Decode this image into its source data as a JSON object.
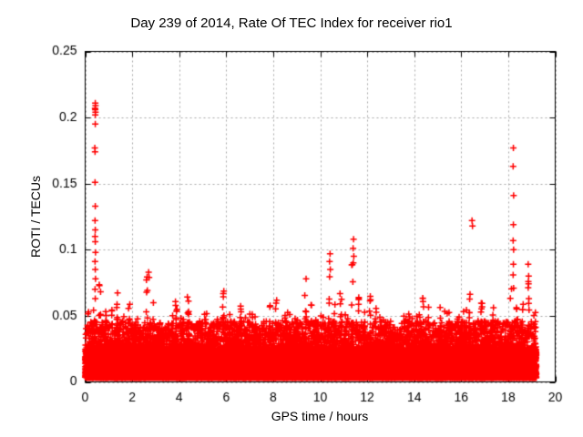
{
  "chart_data": {
    "type": "scatter",
    "title": "Day 239 of 2014, Rate Of TEC Index for receiver rio1",
    "xlabel": "GPS time / hours",
    "ylabel": "ROTI / TECUs",
    "xlim": [
      0,
      20
    ],
    "ylim": [
      0,
      0.25
    ],
    "xticks": [
      0,
      2,
      4,
      6,
      8,
      10,
      12,
      14,
      16,
      18,
      20
    ],
    "yticks": [
      0,
      0.05,
      0.1,
      0.15,
      0.2,
      0.25
    ],
    "grid": true,
    "legend": "none",
    "marker": "plus",
    "color": "#ff0000",
    "grid_color": "#a6a6a6",
    "frame_color": "#000000",
    "data_extent_hours": [
      0,
      19.2
    ],
    "baseline_band": {
      "min": 0.003,
      "dense_top": 0.026,
      "speckle_top": 0.046
    },
    "envelope_bin_hours": 0.25,
    "envelope_max": [
      0.067,
      0.06,
      0.075,
      0.068,
      0.06,
      0.073,
      0.05,
      0.063,
      0.048,
      0.052,
      0.083,
      0.06,
      0.045,
      0.042,
      0.055,
      0.062,
      0.05,
      0.068,
      0.045,
      0.05,
      0.055,
      0.048,
      0.06,
      0.072,
      0.052,
      0.048,
      0.06,
      0.05,
      0.055,
      0.042,
      0.048,
      0.058,
      0.062,
      0.048,
      0.055,
      0.05,
      0.055,
      0.078,
      0.06,
      0.048,
      0.05,
      0.085,
      0.06,
      0.069,
      0.055,
      0.095,
      0.07,
      0.058,
      0.065,
      0.06,
      0.05,
      0.048,
      0.042,
      0.045,
      0.05,
      0.052,
      0.055,
      0.067,
      0.06,
      0.048,
      0.062,
      0.055,
      0.048,
      0.052,
      0.055,
      0.07,
      0.055,
      0.06,
      0.052,
      0.058,
      0.048,
      0.055,
      0.08,
      0.065,
      0.06,
      0.085,
      0.068
    ],
    "outliers": [
      [
        0.43,
        0.211
      ],
      [
        0.44,
        0.209
      ],
      [
        0.42,
        0.207
      ],
      [
        0.43,
        0.206
      ],
      [
        0.44,
        0.204
      ],
      [
        0.43,
        0.202
      ],
      [
        0.43,
        0.195
      ],
      [
        0.41,
        0.177
      ],
      [
        0.42,
        0.174
      ],
      [
        0.42,
        0.151
      ],
      [
        0.43,
        0.133
      ],
      [
        0.42,
        0.122
      ],
      [
        0.43,
        0.115
      ],
      [
        0.42,
        0.11
      ],
      [
        0.43,
        0.106
      ],
      [
        0.44,
        0.098
      ],
      [
        0.42,
        0.091
      ],
      [
        0.43,
        0.085
      ],
      [
        0.44,
        0.078
      ],
      [
        0.42,
        0.07
      ],
      [
        0.43,
        0.063
      ],
      [
        2.7,
        0.083
      ],
      [
        2.72,
        0.079
      ],
      [
        9.4,
        0.078
      ],
      [
        10.42,
        0.097
      ],
      [
        10.4,
        0.091
      ],
      [
        10.43,
        0.085
      ],
      [
        11.42,
        0.108
      ],
      [
        11.4,
        0.101
      ],
      [
        11.43,
        0.095
      ],
      [
        11.41,
        0.09
      ],
      [
        16.46,
        0.122
      ],
      [
        16.48,
        0.118
      ],
      [
        18.22,
        0.177
      ],
      [
        18.21,
        0.163
      ],
      [
        18.23,
        0.141
      ],
      [
        18.22,
        0.119
      ],
      [
        18.21,
        0.107
      ],
      [
        18.23,
        0.1
      ],
      [
        18.22,
        0.089
      ],
      [
        18.21,
        0.081
      ],
      [
        18.23,
        0.071
      ],
      [
        18.85,
        0.089
      ],
      [
        18.87,
        0.08
      ]
    ]
  }
}
